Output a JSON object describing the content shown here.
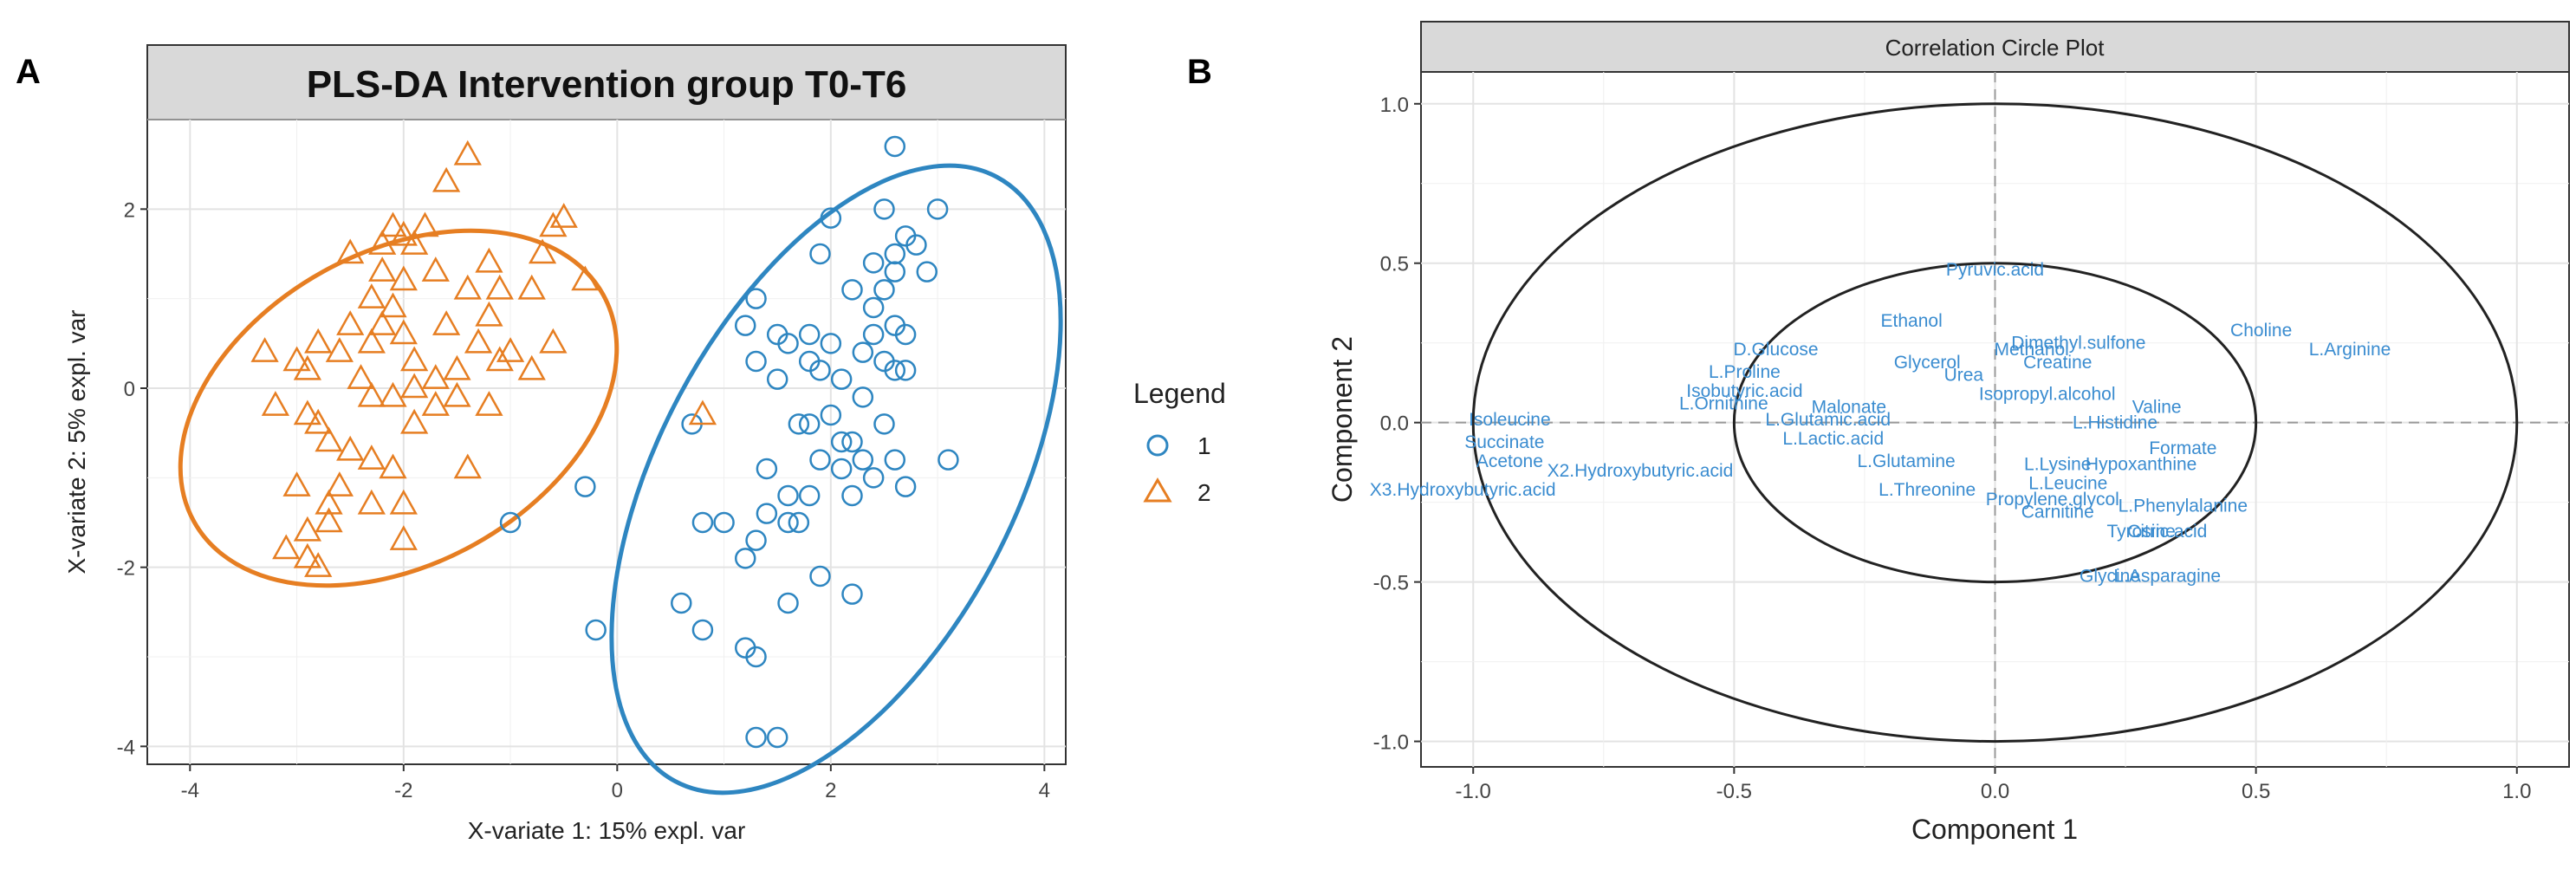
{
  "panels": {
    "a_letter": "A",
    "b_letter": "B"
  },
  "colors": {
    "group1": "#2E86C1",
    "group2": "#E67E22",
    "var_label": "#3A8CD0",
    "strip_bg": "#D9D9D9",
    "grid": "#E6E6E6",
    "circle": "#222222"
  },
  "chart_data": [
    {
      "type": "scatter",
      "title": "PLS-DA Intervention group T0-T6",
      "xlabel": "X-variate 1: 15% expl. var",
      "ylabel": "X-variate 2: 5% expl. var",
      "xlim": [
        -4.4,
        4.2
      ],
      "ylim": [
        -4.2,
        3.0
      ],
      "xticks": [
        -4,
        -2,
        0,
        2,
        4
      ],
      "yticks": [
        -4,
        -2,
        0,
        2
      ],
      "grid": true,
      "legend": {
        "title": "Legend",
        "position": "right",
        "entries": [
          "1",
          "2"
        ]
      },
      "series": [
        {
          "name": "1",
          "marker": "circle",
          "points": [
            [
              2.6,
              2.7
            ],
            [
              1.3,
              1.0
            ],
            [
              2.0,
              1.9
            ],
            [
              2.5,
              2.0
            ],
            [
              2.8,
              1.6
            ],
            [
              2.7,
              1.7
            ],
            [
              3.0,
              2.0
            ],
            [
              2.9,
              1.3
            ],
            [
              2.4,
              1.4
            ],
            [
              2.5,
              1.1
            ],
            [
              2.6,
              1.3
            ],
            [
              2.2,
              1.1
            ],
            [
              1.8,
              0.6
            ],
            [
              1.2,
              0.7
            ],
            [
              1.6,
              0.5
            ],
            [
              2.0,
              0.5
            ],
            [
              2.3,
              0.4
            ],
            [
              2.5,
              0.3
            ],
            [
              2.6,
              0.7
            ],
            [
              2.4,
              0.9
            ],
            [
              2.7,
              0.6
            ],
            [
              1.5,
              0.1
            ],
            [
              1.9,
              0.2
            ],
            [
              2.1,
              0.1
            ],
            [
              2.3,
              -0.1
            ],
            [
              2.6,
              0.2
            ],
            [
              2.0,
              -0.3
            ],
            [
              2.5,
              -0.4
            ],
            [
              1.7,
              -0.4
            ],
            [
              1.3,
              0.3
            ],
            [
              1.4,
              -0.9
            ],
            [
              1.9,
              -0.8
            ],
            [
              2.1,
              -0.9
            ],
            [
              2.4,
              -1.0
            ],
            [
              2.6,
              -0.8
            ],
            [
              3.1,
              -0.8
            ],
            [
              1.6,
              -1.2
            ],
            [
              1.4,
              -1.4
            ],
            [
              1.8,
              -1.2
            ],
            [
              1.0,
              -1.5
            ],
            [
              0.8,
              -1.5
            ],
            [
              1.3,
              -1.7
            ],
            [
              1.6,
              -1.5
            ],
            [
              2.2,
              -1.2
            ],
            [
              2.7,
              -1.1
            ],
            [
              1.7,
              -1.5
            ],
            [
              1.2,
              -1.9
            ],
            [
              1.9,
              -2.1
            ],
            [
              2.2,
              -2.3
            ],
            [
              1.6,
              -2.4
            ],
            [
              0.6,
              -2.4
            ],
            [
              0.8,
              -2.7
            ],
            [
              1.2,
              -2.9
            ],
            [
              1.3,
              -3.0
            ],
            [
              1.3,
              -3.9
            ],
            [
              1.5,
              -3.9
            ],
            [
              -0.2,
              -2.7
            ],
            [
              -0.3,
              -1.1
            ],
            [
              -1.0,
              -1.5
            ],
            [
              2.2,
              -0.6
            ],
            [
              1.8,
              0.3
            ],
            [
              2.7,
              0.2
            ],
            [
              2.4,
              0.6
            ],
            [
              1.8,
              -0.4
            ],
            [
              2.1,
              -0.6
            ],
            [
              2.3,
              -0.8
            ],
            [
              1.5,
              0.6
            ],
            [
              2.6,
              1.5
            ],
            [
              1.9,
              1.5
            ],
            [
              0.7,
              -0.4
            ]
          ]
        },
        {
          "name": "2",
          "marker": "triangle",
          "points": [
            [
              -1.4,
              2.6
            ],
            [
              -1.6,
              2.3
            ],
            [
              -2.1,
              1.8
            ],
            [
              -2.0,
              1.7
            ],
            [
              -1.9,
              1.6
            ],
            [
              -1.8,
              1.8
            ],
            [
              -2.2,
              1.6
            ],
            [
              -2.5,
              1.5
            ],
            [
              -2.2,
              1.3
            ],
            [
              -2.0,
              1.2
            ],
            [
              -2.3,
              1.0
            ],
            [
              -2.1,
              0.9
            ],
            [
              -1.7,
              1.3
            ],
            [
              -1.4,
              1.1
            ],
            [
              -1.2,
              1.4
            ],
            [
              -1.1,
              1.1
            ],
            [
              -0.8,
              1.1
            ],
            [
              -0.6,
              1.8
            ],
            [
              -0.7,
              1.5
            ],
            [
              -0.5,
              1.9
            ],
            [
              -0.3,
              1.2
            ],
            [
              -0.6,
              0.5
            ],
            [
              -0.8,
              0.2
            ],
            [
              -1.0,
              0.4
            ],
            [
              -1.3,
              0.5
            ],
            [
              -1.5,
              0.2
            ],
            [
              -1.5,
              -0.1
            ],
            [
              -1.7,
              0.1
            ],
            [
              -1.9,
              0.3
            ],
            [
              -2.0,
              0.6
            ],
            [
              -2.2,
              0.7
            ],
            [
              -2.3,
              0.5
            ],
            [
              -2.5,
              0.7
            ],
            [
              -2.6,
              0.4
            ],
            [
              -2.8,
              0.5
            ],
            [
              -2.9,
              0.2
            ],
            [
              -3.0,
              0.3
            ],
            [
              -3.3,
              0.4
            ],
            [
              -3.2,
              -0.2
            ],
            [
              -2.9,
              -0.3
            ],
            [
              -2.8,
              -0.4
            ],
            [
              -2.7,
              -0.6
            ],
            [
              -2.5,
              -0.7
            ],
            [
              -2.3,
              -0.8
            ],
            [
              -2.1,
              -0.9
            ],
            [
              -2.0,
              -1.3
            ],
            [
              -1.9,
              -0.4
            ],
            [
              -1.7,
              -0.2
            ],
            [
              -1.9,
              0.0
            ],
            [
              -2.1,
              -0.1
            ],
            [
              -3.0,
              -1.1
            ],
            [
              -2.6,
              -1.1
            ],
            [
              -2.3,
              -1.3
            ],
            [
              -2.7,
              -1.3
            ],
            [
              -3.1,
              -1.8
            ],
            [
              -2.9,
              -1.9
            ],
            [
              -2.7,
              -1.5
            ],
            [
              -2.9,
              -1.6
            ],
            [
              -2.0,
              -1.7
            ],
            [
              -1.4,
              -0.9
            ],
            [
              -1.2,
              -0.2
            ],
            [
              -1.1,
              0.3
            ],
            [
              -2.4,
              0.1
            ],
            [
              -1.6,
              0.7
            ],
            [
              -1.2,
              0.8
            ],
            [
              -2.8,
              -2.0
            ],
            [
              -2.3,
              -0.1
            ],
            [
              0.8,
              -0.3
            ]
          ]
        }
      ]
    },
    {
      "type": "scatter",
      "title": "Correlation Circle Plot",
      "xlabel": "Component  1",
      "ylabel": "Component  2",
      "xlim": [
        -1.1,
        1.1
      ],
      "ylim": [
        -1.08,
        1.1
      ],
      "xticks": [
        -1.0,
        -0.5,
        0.0,
        0.5,
        1.0
      ],
      "yticks": [
        -1.0,
        -0.5,
        0.0,
        0.5,
        1.0
      ],
      "xtick_labels": [
        "-1.0",
        "-0.5",
        "0.0",
        "0.5",
        "1.0"
      ],
      "ytick_labels": [
        "-1.0",
        "-0.5",
        "0.0",
        "0.5",
        "1.0"
      ],
      "grid": true,
      "circles": [
        1.0,
        0.5
      ],
      "variables": [
        {
          "label": "Pyruvic.acid",
          "x": 0.0,
          "y": 0.48
        },
        {
          "label": "Ethanol",
          "x": -0.16,
          "y": 0.32
        },
        {
          "label": "D.Glucose",
          "x": -0.42,
          "y": 0.23
        },
        {
          "label": "L.Proline",
          "x": -0.48,
          "y": 0.16
        },
        {
          "label": "Isobutyric.acid",
          "x": -0.48,
          "y": 0.1
        },
        {
          "label": "L.Ornithine",
          "x": -0.52,
          "y": 0.06
        },
        {
          "label": "Malonate",
          "x": -0.28,
          "y": 0.05
        },
        {
          "label": "L.Glutamic.acid",
          "x": -0.32,
          "y": 0.01
        },
        {
          "label": "L.Lactic.acid",
          "x": -0.31,
          "y": -0.05
        },
        {
          "label": "Glycerol",
          "x": -0.13,
          "y": 0.19
        },
        {
          "label": "Urea",
          "x": -0.06,
          "y": 0.15
        },
        {
          "label": "Methanol",
          "x": 0.07,
          "y": 0.23
        },
        {
          "label": "Dimethyl.sulfone",
          "x": 0.16,
          "y": 0.25
        },
        {
          "label": "Creatine",
          "x": 0.12,
          "y": 0.19
        },
        {
          "label": "Choline",
          "x": 0.51,
          "y": 0.29
        },
        {
          "label": "L.Arginine",
          "x": 0.68,
          "y": 0.23
        },
        {
          "label": "Isopropyl.alcohol",
          "x": 0.1,
          "y": 0.09
        },
        {
          "label": "Valine",
          "x": 0.31,
          "y": 0.05
        },
        {
          "label": "L.Histidine",
          "x": 0.23,
          "y": 0.0
        },
        {
          "label": "Isoleucine",
          "x": -0.93,
          "y": 0.01
        },
        {
          "label": "Succinate",
          "x": -0.94,
          "y": -0.06
        },
        {
          "label": "Acetone",
          "x": -0.93,
          "y": -0.12
        },
        {
          "label": "X3.Hydroxybutyric.acid",
          "x": -1.02,
          "y": -0.21
        },
        {
          "label": "X2.Hydroxybutyric.acid",
          "x": -0.68,
          "y": -0.15
        },
        {
          "label": "L.Glutamine",
          "x": -0.17,
          "y": -0.12
        },
        {
          "label": "L.Threonine",
          "x": -0.13,
          "y": -0.21
        },
        {
          "label": "L.Lysine",
          "x": 0.12,
          "y": -0.13
        },
        {
          "label": "Hypoxanthine",
          "x": 0.28,
          "y": -0.13
        },
        {
          "label": "L.Leucine",
          "x": 0.14,
          "y": -0.19
        },
        {
          "label": "Propylene.glycol",
          "x": 0.11,
          "y": -0.24
        },
        {
          "label": "Carnitine",
          "x": 0.12,
          "y": -0.28
        },
        {
          "label": "L.Phenylalanine",
          "x": 0.36,
          "y": -0.26
        },
        {
          "label": "Formate",
          "x": 0.36,
          "y": -0.08
        },
        {
          "label": "Tyrosine",
          "x": 0.28,
          "y": -0.34
        },
        {
          "label": "Citric.acid",
          "x": 0.33,
          "y": -0.34
        },
        {
          "label": "Glycine",
          "x": 0.22,
          "y": -0.48
        },
        {
          "label": "L.Asparagine",
          "x": 0.33,
          "y": -0.48
        }
      ]
    }
  ]
}
